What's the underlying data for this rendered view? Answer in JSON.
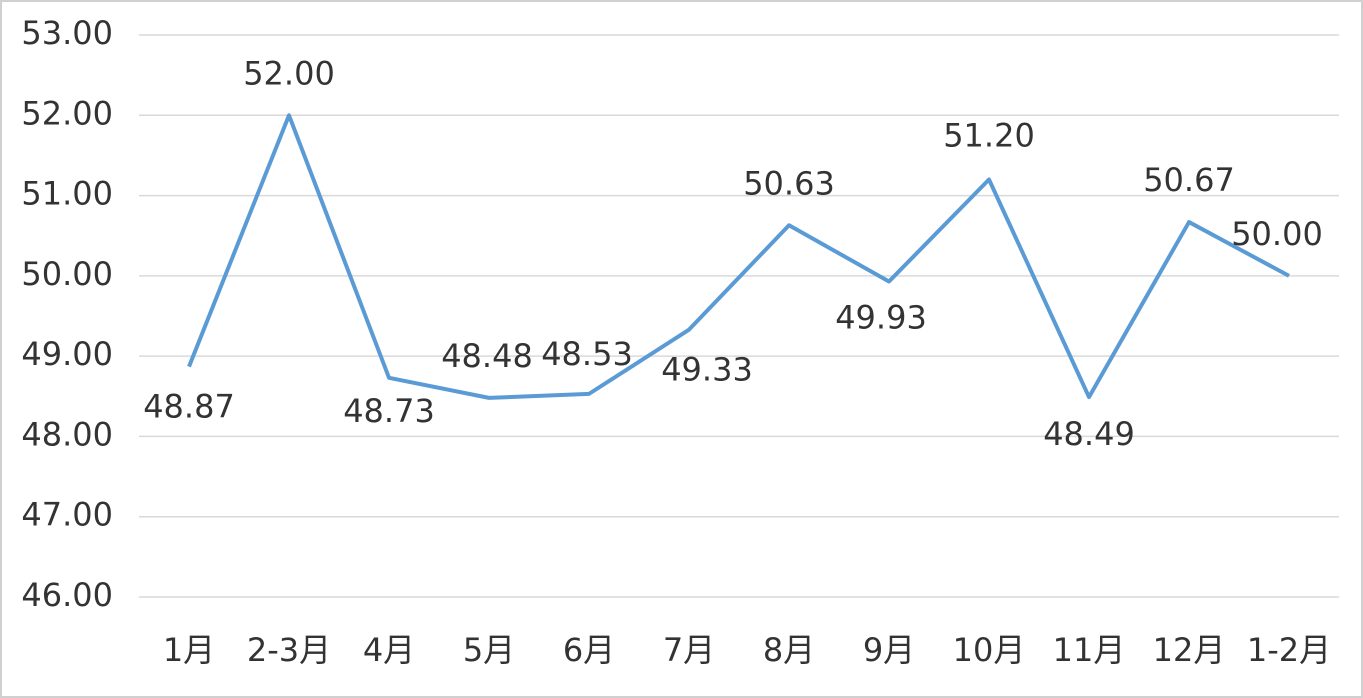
{
  "chart_data": {
    "type": "line",
    "categories": [
      "1月",
      "2-3月",
      "4月",
      "5月",
      "6月",
      "7月",
      "8月",
      "9月",
      "10月",
      "11月",
      "12月",
      "1-2月"
    ],
    "series": [
      {
        "color": "#5b9bd5",
        "values": [
          48.87,
          52,
          48.73,
          48.48,
          48.53,
          49.33,
          50.63,
          49.93,
          51.2,
          48.49,
          50.67,
          50
        ],
        "value_labels": [
          "48.87",
          "52.00",
          "48.73",
          "48.48",
          "48.53",
          "49.33",
          "50.63",
          "49.93",
          "51.20",
          "48.49",
          "50.67",
          "50.00"
        ]
      }
    ],
    "ylim": [
      46,
      53
    ],
    "yticks": [
      {
        "value": 46,
        "label": "46.00"
      },
      {
        "value": 47,
        "label": "47.00"
      },
      {
        "value": 48,
        "label": "48.00"
      },
      {
        "value": 49,
        "label": "49.00"
      },
      {
        "value": 50,
        "label": "50.00"
      },
      {
        "value": 51,
        "label": "51.00"
      },
      {
        "value": 52,
        "label": "52.00"
      },
      {
        "value": 53,
        "label": "53.00"
      }
    ],
    "grid": true
  }
}
